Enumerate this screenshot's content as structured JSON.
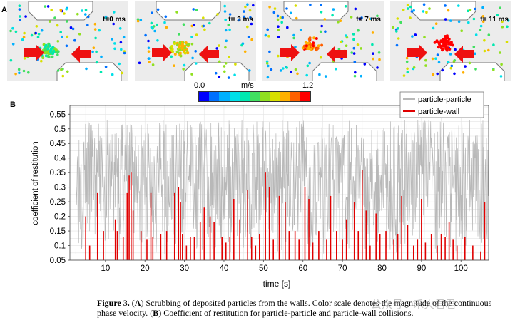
{
  "panel_a": {
    "letter": "A",
    "times": [
      "t=0 ms",
      "t= 3 ms",
      "t= 7 ms",
      "t= 11 ms"
    ]
  },
  "colorbar": {
    "min_label": "0.0",
    "unit": "m/s",
    "max_label": "1.2",
    "colors": [
      "#0000ff",
      "#0070ff",
      "#00b0ff",
      "#00e0e8",
      "#00e8b0",
      "#40e060",
      "#90e020",
      "#d8e000",
      "#ffb000",
      "#ff6000",
      "#ff0000"
    ]
  },
  "panel_b": {
    "letter": "B"
  },
  "chart_data": {
    "type": "line",
    "xlabel": "time [s]",
    "ylabel": "coefficient of restitution",
    "xlim": [
      1,
      107
    ],
    "ylim": [
      0.05,
      0.58
    ],
    "xticks": [
      10,
      20,
      30,
      40,
      50,
      60,
      70,
      80,
      90,
      100
    ],
    "yticks": [
      0.05,
      0.1,
      0.15,
      0.2,
      0.25,
      0.3,
      0.35,
      0.4,
      0.45,
      0.5,
      0.55
    ],
    "ytick_labels": [
      "0.05",
      "0.1",
      "0.15",
      "0.2",
      "0.25",
      "0.3",
      "0.35",
      "0.4",
      "0.45",
      "0.5",
      "0.55"
    ],
    "grid": true,
    "legend_position": "top-right",
    "series": [
      {
        "name": "particle-particle",
        "color": "#b8b8b8"
      },
      {
        "name": "particle-wall",
        "color": "#e00000",
        "spikes": [
          [
            5,
            0.2
          ],
          [
            6,
            0.1
          ],
          [
            8,
            0.28
          ],
          [
            9.5,
            0.15
          ],
          [
            12.5,
            0.19
          ],
          [
            13,
            0.15
          ],
          [
            14.5,
            0.13
          ],
          [
            15.5,
            0.28
          ],
          [
            16,
            0.34
          ],
          [
            16.5,
            0.35
          ],
          [
            17,
            0.22
          ],
          [
            19,
            0.15
          ],
          [
            20.5,
            0.12
          ],
          [
            21.5,
            0.28
          ],
          [
            22,
            0.13
          ],
          [
            24,
            0.14
          ],
          [
            25.5,
            0.15
          ],
          [
            27.5,
            0.28
          ],
          [
            28.5,
            0.3
          ],
          [
            29,
            0.25
          ],
          [
            29.5,
            0.14
          ],
          [
            30.5,
            0.1
          ],
          [
            31.5,
            0.13
          ],
          [
            32.5,
            0.13
          ],
          [
            34,
            0.18
          ],
          [
            35,
            0.23
          ],
          [
            36.5,
            0.2
          ],
          [
            37.5,
            0.18
          ],
          [
            39.5,
            0.13
          ],
          [
            40.5,
            0.11
          ],
          [
            41.5,
            0.13
          ],
          [
            42.5,
            0.26
          ],
          [
            44,
            0.19
          ],
          [
            46,
            0.29
          ],
          [
            47,
            0.13
          ],
          [
            48,
            0.1
          ],
          [
            49,
            0.14
          ],
          [
            50.5,
            0.35
          ],
          [
            51.5,
            0.3
          ],
          [
            52.5,
            0.12
          ],
          [
            54,
            0.27
          ],
          [
            55.5,
            0.25
          ],
          [
            56.5,
            0.15
          ],
          [
            58,
            0.15
          ],
          [
            59,
            0.12
          ],
          [
            60.5,
            0.3
          ],
          [
            61.5,
            0.26
          ],
          [
            62.5,
            0.11
          ],
          [
            64,
            0.15
          ],
          [
            66,
            0.12
          ],
          [
            67,
            0.27
          ],
          [
            68.5,
            0.15
          ],
          [
            70,
            0.12
          ],
          [
            71,
            0.19
          ],
          [
            73,
            0.25
          ],
          [
            74,
            0.15
          ],
          [
            75,
            0.36
          ],
          [
            76,
            0.22
          ],
          [
            77,
            0.1
          ],
          [
            78.5,
            0.21
          ],
          [
            79.5,
            0.14
          ],
          [
            81,
            0.15
          ],
          [
            83,
            0.12
          ],
          [
            84,
            0.14
          ],
          [
            85,
            0.27
          ],
          [
            86.5,
            0.17
          ],
          [
            88,
            0.1
          ],
          [
            89,
            0.12
          ],
          [
            90,
            0.26
          ],
          [
            91,
            0.11
          ],
          [
            92.5,
            0.14
          ],
          [
            94,
            0.1
          ],
          [
            95,
            0.14
          ],
          [
            96,
            0.13
          ],
          [
            97,
            0.18
          ],
          [
            98,
            0.12
          ],
          [
            99,
            0.1
          ],
          [
            101,
            0.13
          ],
          [
            103,
            0.1
          ],
          [
            105,
            0.08
          ],
          [
            106,
            0.25
          ]
        ]
      }
    ]
  },
  "caption": {
    "figure_label": "Figure 3.",
    "part1": " (",
    "bold_a": "A",
    "part2": ") Scrubbing of deposited particles from the walls. Color scale denotes the magnitude of the continuous phase velocity. (",
    "bold_b": "B",
    "part3": ") Coefficient of restitution for particle-particle and particle-wall collisions."
  },
  "watermark": "公众号 · 禾火君君"
}
